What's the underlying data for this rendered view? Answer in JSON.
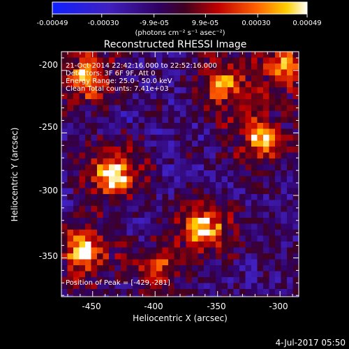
{
  "colorbar": {
    "tick_labels": [
      "-0.00049",
      "-0.00030",
      "-9.9e-05",
      "9.9e-05",
      "0.00030",
      "0.00049"
    ],
    "unit_label": "(photons cm⁻² s⁻¹ asec⁻²)",
    "range": [
      -0.00049,
      0.00049
    ]
  },
  "image": {
    "title": "Reconstructed RHESSI Image",
    "info_lines": [
      "21-Oct-2014 22:42:16.000 to 22:52:16.000",
      "Detectors: 3F 6F 9F, Att 0",
      "Energy Range: 25.0 - 50.0 keV",
      "Clean     Total counts: 7.41e+03"
    ],
    "peak_label": "Position of Peak = [-429,-281]",
    "x_axis": {
      "label": "Heliocentric X (arcsec)",
      "ticks": [
        -450,
        -400,
        -350,
        -300
      ],
      "range": [
        -475,
        -285
      ]
    },
    "y_axis": {
      "label": "Heliocentric Y (arcsec)",
      "ticks": [
        -200,
        -250,
        -300,
        -350
      ],
      "range": [
        -185,
        -381
      ]
    },
    "sources": [
      {
        "x": -433,
        "y": -283,
        "peak": 1.0
      },
      {
        "x": -458,
        "y": -345,
        "peak": 0.95
      },
      {
        "x": -362,
        "y": -326,
        "peak": 0.95
      },
      {
        "x": -315,
        "y": -255,
        "peak": 0.85
      },
      {
        "x": -296,
        "y": -200,
        "peak": 0.8
      },
      {
        "x": -455,
        "y": -205,
        "peak": 0.85
      },
      {
        "x": -345,
        "y": -212,
        "peak": 0.7
      },
      {
        "x": -398,
        "y": -360,
        "peak": 0.55
      }
    ]
  },
  "footer": {
    "date": "4-Jul-2017 05:50"
  }
}
